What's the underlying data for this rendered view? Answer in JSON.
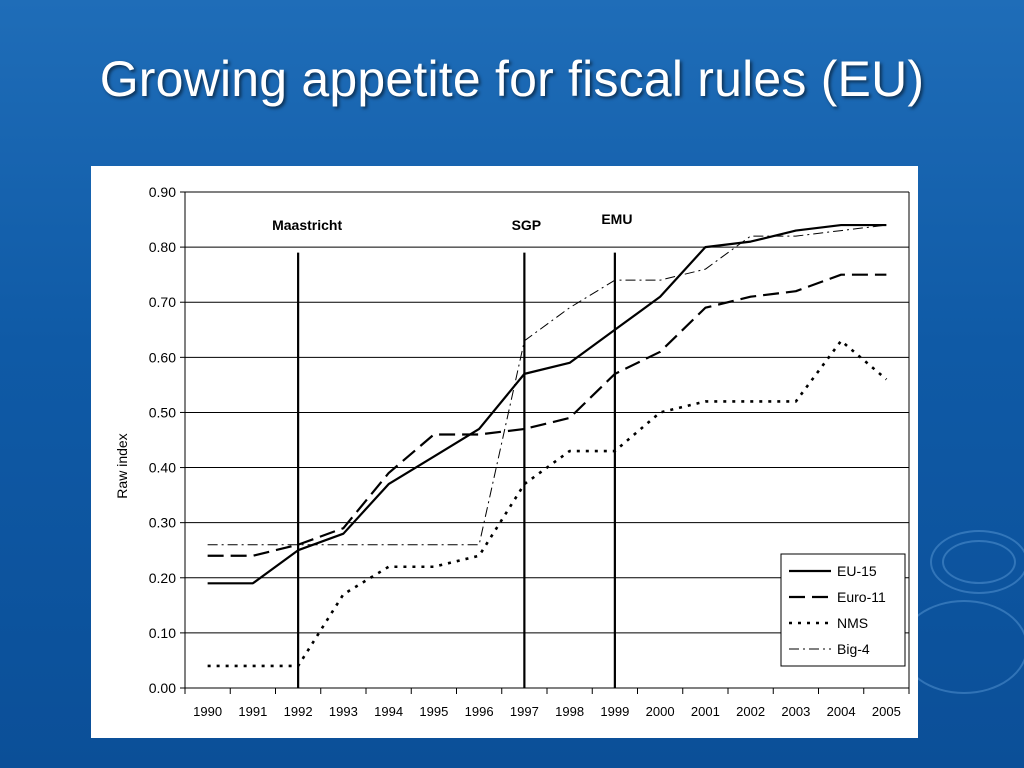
{
  "slide": {
    "title": "Growing appetite for fiscal rules (EU)"
  },
  "colors": {
    "background": "#0f5aa6",
    "title": "#ffffff",
    "panel": "#ffffff",
    "series": "#000000"
  },
  "chart_data": {
    "type": "line",
    "ylabel": "Raw index",
    "ylim": [
      0,
      0.9
    ],
    "ytick_labels": [
      "0.00",
      "0.10",
      "0.20",
      "0.30",
      "0.40",
      "0.50",
      "0.60",
      "0.70",
      "0.80",
      "0.90"
    ],
    "grid": true,
    "legend": "bottom-right",
    "x": [
      "1990",
      "1991",
      "1992",
      "1993",
      "1994",
      "1995",
      "1996",
      "1997",
      "1998",
      "1999",
      "2000",
      "2001",
      "2002",
      "2003",
      "2004",
      "2005"
    ],
    "series": [
      {
        "name": "EU-15",
        "style": "solid",
        "values": [
          0.19,
          0.19,
          0.25,
          0.28,
          0.37,
          0.42,
          0.47,
          0.57,
          0.59,
          0.65,
          0.71,
          0.8,
          0.81,
          0.83,
          0.84,
          0.84
        ]
      },
      {
        "name": "Euro-11",
        "style": "dashed",
        "values": [
          0.24,
          0.24,
          0.26,
          0.29,
          0.39,
          0.46,
          0.46,
          0.47,
          0.49,
          0.57,
          0.61,
          0.69,
          0.71,
          0.72,
          0.75,
          0.75
        ]
      },
      {
        "name": "NMS",
        "style": "dotted",
        "values": [
          0.04,
          0.04,
          0.04,
          0.17,
          0.22,
          0.22,
          0.24,
          0.37,
          0.43,
          0.43,
          0.5,
          0.52,
          0.52,
          0.52,
          0.63,
          0.56
        ]
      },
      {
        "name": "Big-4",
        "style": "dashdot",
        "values": [
          0.26,
          0.26,
          0.26,
          0.26,
          0.26,
          0.26,
          0.26,
          0.63,
          0.69,
          0.74,
          0.74,
          0.76,
          0.82,
          0.82,
          0.83,
          0.84
        ]
      }
    ],
    "markers": [
      {
        "label": "Maastricht",
        "x": 1992
      },
      {
        "label": "SGP",
        "x": 1997
      },
      {
        "label": "EMU",
        "x": 1999
      }
    ]
  }
}
